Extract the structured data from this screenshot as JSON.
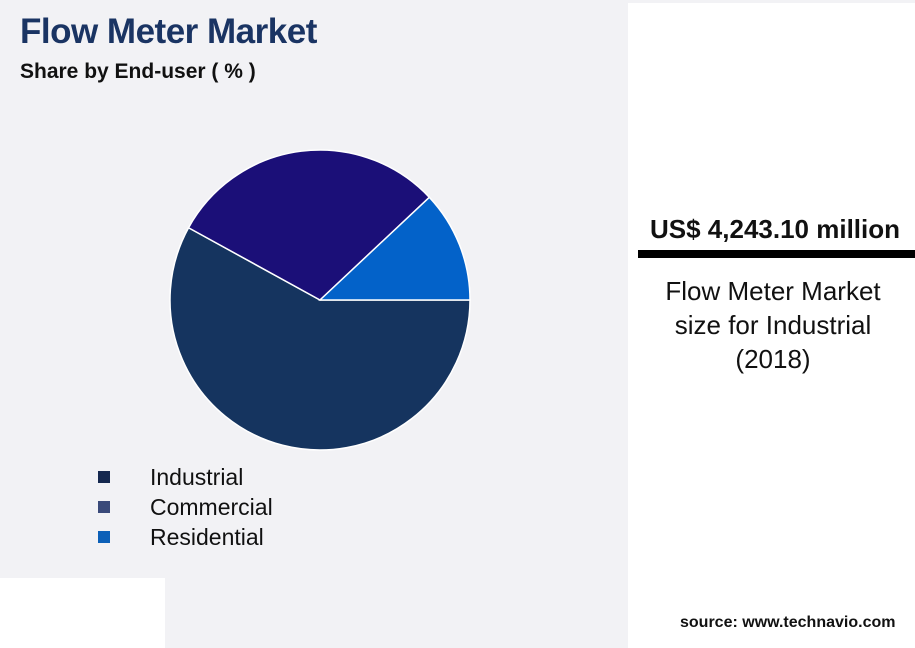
{
  "header": {
    "title": "Flow Meter Market",
    "subtitle": "Share by End-user ( % )"
  },
  "chart_data": {
    "type": "pie",
    "title": "Flow Meter Market",
    "subtitle": "Share by End-user ( % )",
    "legend_position": "bottom-left",
    "series": [
      {
        "name": "Industrial",
        "value": 58,
        "color": "#15345f"
      },
      {
        "name": "Commercial",
        "value": 30,
        "color": "#1b0f78"
      },
      {
        "name": "Residential",
        "value": 12,
        "color": "#0362c9"
      }
    ],
    "legend_colors": [
      "#15284f",
      "#3a4a7a",
      "#0c60b8"
    ]
  },
  "callout": {
    "value": "US$ 4,243.10 million",
    "description_line1": "Flow Meter Market",
    "description_line2": "size for Industrial",
    "description_line3": "(2018)"
  },
  "source": "source: www.technavio.com"
}
